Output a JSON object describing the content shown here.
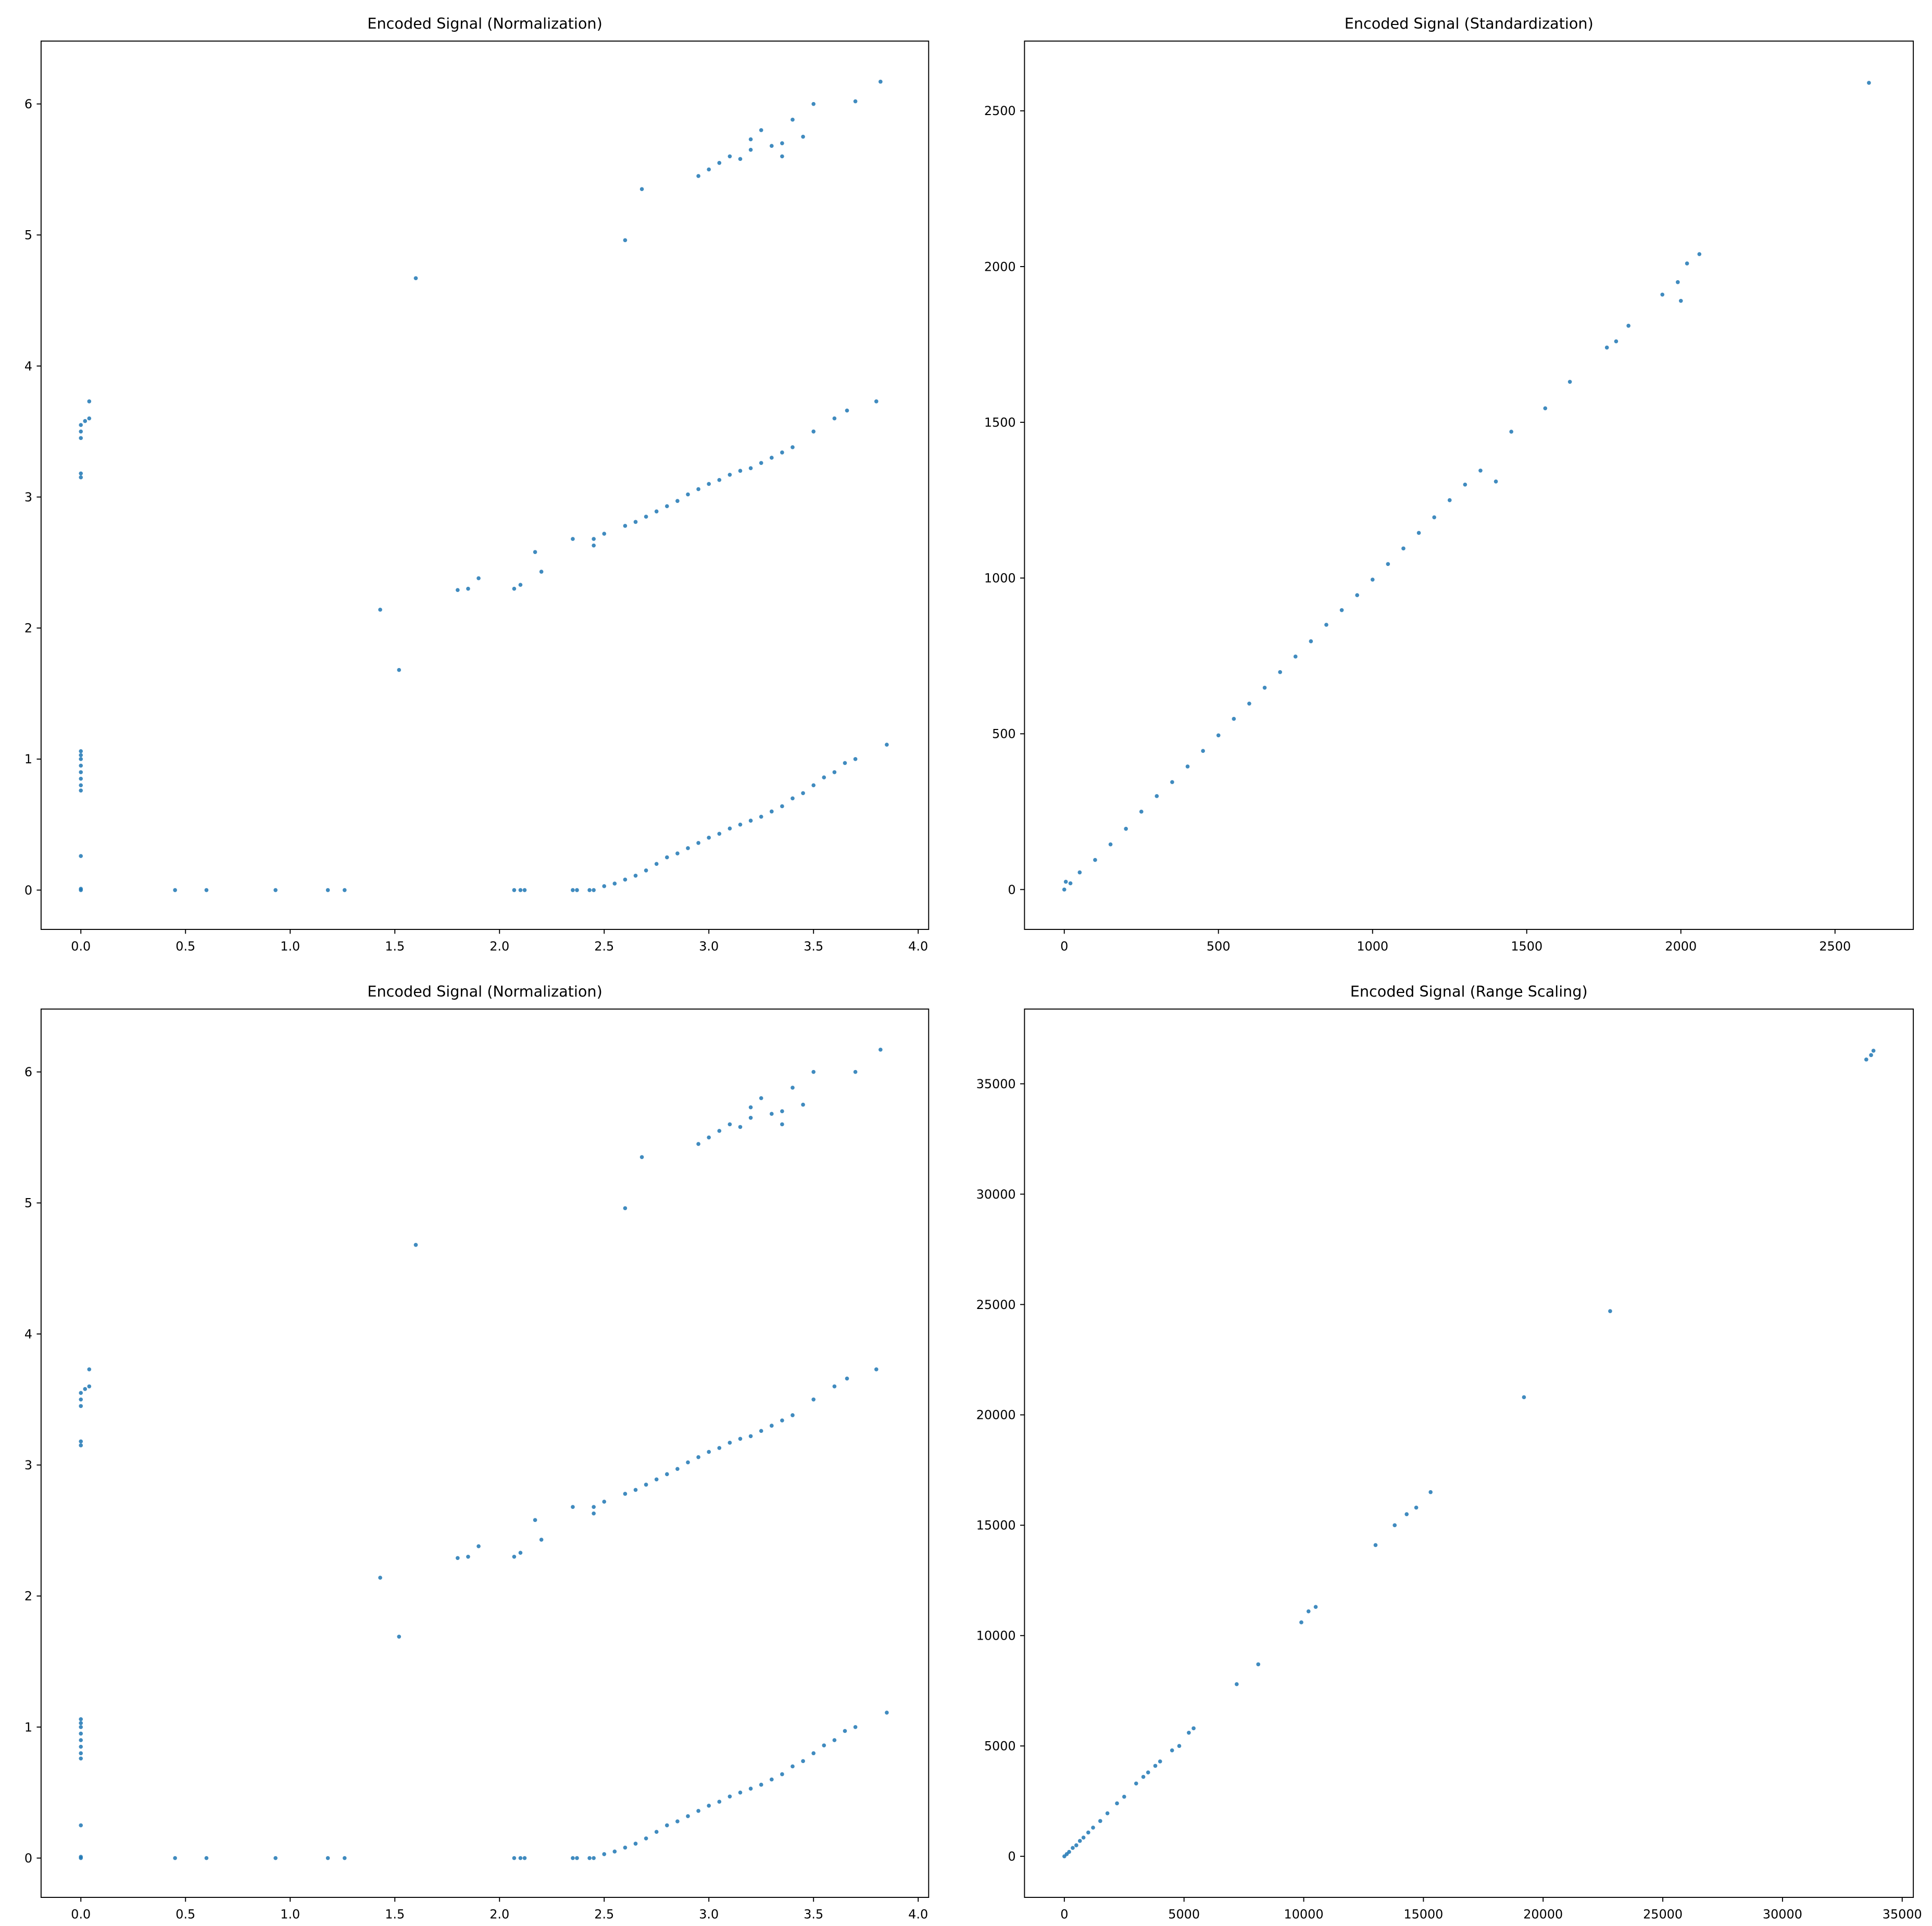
{
  "chart_data": [
    {
      "type": "scatter",
      "title": "Encoded Signal (Normalization)",
      "color": "#1f77b4",
      "x": [
        0,
        0,
        0,
        0,
        0,
        0,
        0,
        0,
        0,
        0,
        0,
        0,
        0,
        0,
        0,
        0,
        0.02,
        0.04,
        0.04,
        0.45,
        0.6,
        0.93,
        1.18,
        1.26,
        2.07,
        2.1,
        2.12,
        2.35,
        2.37,
        2.43,
        2.45,
        2.5,
        2.55,
        2.6,
        2.65,
        2.7,
        2.75,
        2.8,
        2.85,
        2.9,
        2.95,
        3.0,
        3.05,
        3.1,
        3.15,
        3.2,
        3.25,
        3.3,
        3.35,
        3.4,
        3.45,
        3.5,
        3.55,
        3.6,
        3.65,
        3.7,
        3.85,
        1.43,
        1.52,
        1.8,
        1.85,
        1.9,
        2.07,
        2.1,
        2.17,
        2.2,
        2.35,
        2.45,
        2.45,
        2.5,
        2.6,
        2.65,
        2.7,
        2.75,
        2.8,
        2.85,
        2.9,
        2.95,
        3.0,
        3.05,
        3.1,
        3.15,
        3.2,
        3.25,
        3.3,
        3.35,
        3.4,
        3.5,
        3.6,
        3.66,
        3.8,
        1.6,
        2.6,
        2.68,
        2.95,
        3.0,
        3.05,
        3.1,
        3.15,
        3.2,
        3.2,
        3.25,
        3.3,
        3.35,
        3.35,
        3.4,
        3.45,
        3.5,
        3.7,
        3.82
      ],
      "values": [
        0,
        0.01,
        0.26,
        0.76,
        0.8,
        0.85,
        0.9,
        0.95,
        1.0,
        1.03,
        1.06,
        3.15,
        3.18,
        3.45,
        3.5,
        3.55,
        3.58,
        3.6,
        3.73,
        0,
        0,
        0,
        0,
        0,
        0,
        0,
        0,
        0,
        0,
        0,
        0,
        0.03,
        0.05,
        0.08,
        0.11,
        0.15,
        0.2,
        0.25,
        0.28,
        0.32,
        0.36,
        0.4,
        0.43,
        0.47,
        0.5,
        0.53,
        0.56,
        0.6,
        0.64,
        0.7,
        0.74,
        0.8,
        0.86,
        0.9,
        0.97,
        1.0,
        1.11,
        2.14,
        1.68,
        2.29,
        2.3,
        2.38,
        2.3,
        2.33,
        2.58,
        2.43,
        2.68,
        2.63,
        2.68,
        2.72,
        2.78,
        2.81,
        2.85,
        2.89,
        2.93,
        2.97,
        3.02,
        3.06,
        3.1,
        3.13,
        3.17,
        3.2,
        3.22,
        3.26,
        3.3,
        3.34,
        3.38,
        3.5,
        3.6,
        3.66,
        3.73,
        4.67,
        4.96,
        5.35,
        5.45,
        5.5,
        5.55,
        5.6,
        5.58,
        5.65,
        5.73,
        5.8,
        5.68,
        5.7,
        5.6,
        5.88,
        5.75,
        6.0,
        6.02,
        6.17
      ],
      "xlim": [
        -0.19,
        4.05
      ],
      "ylim": [
        -0.3,
        6.48
      ],
      "xticks": [
        {
          "value": 0,
          "label": "0.0"
        },
        0.5,
        {
          "value": 1,
          "label": "1.0"
        },
        1.5,
        {
          "value": 2,
          "label": "2.0"
        },
        2.5,
        {
          "value": 3,
          "label": "3.0"
        },
        3.5,
        {
          "value": 4,
          "label": "4.0"
        }
      ],
      "yticks": [
        0,
        1,
        2,
        3,
        4,
        5,
        6
      ]
    },
    {
      "type": "scatter",
      "title": "Encoded Signal (Standardization)",
      "color": "#1f77b4",
      "x": [
        0,
        5,
        20,
        50,
        100,
        150,
        200,
        250,
        300,
        350,
        400,
        450,
        500,
        550,
        600,
        650,
        700,
        750,
        800,
        850,
        900,
        950,
        1000,
        1050,
        1100,
        1150,
        1200,
        1250,
        1300,
        1350,
        1400,
        1450,
        1560,
        1640,
        1760,
        1790,
        1830,
        1940,
        1990,
        2000,
        2020,
        2060,
        2610
      ],
      "values": [
        0,
        25,
        20,
        55,
        95,
        145,
        195,
        250,
        300,
        345,
        395,
        445,
        495,
        548,
        597,
        648,
        698,
        748,
        797,
        850,
        897,
        945,
        995,
        1045,
        1095,
        1145,
        1195,
        1250,
        1300,
        1345,
        1310,
        1470,
        1545,
        1630,
        1740,
        1760,
        1810,
        1910,
        1950,
        1890,
        2010,
        2040,
        2590
      ],
      "xlim": [
        -129,
        2754
      ],
      "ylim": [
        -128,
        2724
      ],
      "xticks": [
        0,
        500,
        1000,
        1500,
        2000,
        2500
      ],
      "yticks": [
        0,
        500,
        1000,
        1500,
        2000,
        2500
      ]
    },
    {
      "type": "scatter",
      "title": "Encoded Signal (Normalization)",
      "color": "#1f77b4",
      "x": [
        0,
        0,
        0,
        0,
        0,
        0,
        0,
        0,
        0,
        0,
        0,
        0,
        0,
        0,
        0,
        0,
        0.02,
        0.04,
        0.04,
        0.45,
        0.6,
        0.93,
        1.18,
        1.26,
        2.07,
        2.1,
        2.12,
        2.35,
        2.37,
        2.43,
        2.45,
        2.5,
        2.55,
        2.6,
        2.65,
        2.7,
        2.75,
        2.8,
        2.85,
        2.9,
        2.95,
        3.0,
        3.05,
        3.1,
        3.15,
        3.2,
        3.25,
        3.3,
        3.35,
        3.4,
        3.45,
        3.5,
        3.55,
        3.6,
        3.65,
        3.7,
        3.85,
        1.43,
        1.52,
        1.8,
        1.85,
        1.9,
        2.07,
        2.1,
        2.17,
        2.2,
        2.35,
        2.45,
        2.45,
        2.5,
        2.6,
        2.65,
        2.7,
        2.75,
        2.8,
        2.85,
        2.9,
        2.95,
        3.0,
        3.05,
        3.1,
        3.15,
        3.2,
        3.25,
        3.3,
        3.35,
        3.4,
        3.5,
        3.6,
        3.66,
        3.8,
        1.6,
        2.6,
        2.68,
        2.95,
        3.0,
        3.05,
        3.1,
        3.15,
        3.2,
        3.2,
        3.25,
        3.3,
        3.35,
        3.35,
        3.4,
        3.45,
        3.5,
        3.7,
        3.82
      ],
      "values": [
        0,
        0.01,
        0.25,
        0.76,
        0.8,
        0.85,
        0.9,
        0.95,
        1.0,
        1.03,
        1.06,
        3.15,
        3.18,
        3.45,
        3.5,
        3.55,
        3.58,
        3.6,
        3.73,
        0,
        0,
        0,
        0,
        0,
        0,
        0,
        0,
        0,
        0,
        0,
        0,
        0.03,
        0.05,
        0.08,
        0.11,
        0.15,
        0.2,
        0.25,
        0.28,
        0.32,
        0.36,
        0.4,
        0.43,
        0.47,
        0.5,
        0.53,
        0.56,
        0.6,
        0.64,
        0.7,
        0.74,
        0.8,
        0.86,
        0.9,
        0.97,
        1.0,
        1.11,
        2.14,
        1.69,
        2.29,
        2.3,
        2.38,
        2.3,
        2.33,
        2.58,
        2.43,
        2.68,
        2.63,
        2.68,
        2.72,
        2.78,
        2.81,
        2.85,
        2.89,
        2.93,
        2.97,
        3.02,
        3.06,
        3.1,
        3.13,
        3.17,
        3.2,
        3.22,
        3.26,
        3.3,
        3.34,
        3.38,
        3.5,
        3.6,
        3.66,
        3.73,
        4.68,
        4.96,
        5.35,
        5.45,
        5.5,
        5.55,
        5.6,
        5.58,
        5.65,
        5.73,
        5.8,
        5.68,
        5.7,
        5.6,
        5.88,
        5.75,
        6.0,
        6.0,
        6.17
      ],
      "xlim": [
        -0.19,
        4.05
      ],
      "ylim": [
        -0.3,
        6.48
      ],
      "xticks": [
        {
          "value": 0,
          "label": "0.0"
        },
        0.5,
        {
          "value": 1,
          "label": "1.0"
        },
        1.5,
        {
          "value": 2,
          "label": "2.0"
        },
        2.5,
        {
          "value": 3,
          "label": "3.0"
        },
        3.5,
        {
          "value": 4,
          "label": "4.0"
        }
      ],
      "yticks": [
        0,
        1,
        2,
        3,
        4,
        5,
        6
      ]
    },
    {
      "type": "scatter",
      "title": "Encoded Signal (Range Scaling)",
      "color": "#1f77b4",
      "x": [
        0,
        100,
        200,
        350,
        500,
        650,
        800,
        1000,
        1200,
        1500,
        1800,
        2200,
        2500,
        3000,
        3300,
        3500,
        3800,
        4000,
        4500,
        4800,
        5200,
        5400,
        7200,
        8100,
        9900,
        10200,
        10500,
        13000,
        13800,
        14300,
        14700,
        15300,
        19200,
        22800,
        33500,
        33700,
        33800
      ],
      "values": [
        0,
        100,
        200,
        380,
        500,
        700,
        850,
        1080,
        1300,
        1600,
        1950,
        2400,
        2700,
        3300,
        3600,
        3800,
        4100,
        4300,
        4800,
        5000,
        5600,
        5800,
        7800,
        8700,
        10600,
        11100,
        11300,
        14100,
        15000,
        15500,
        15800,
        16500,
        20800,
        24700,
        36100,
        36300,
        36500
      ],
      "xlim": [
        -1664,
        35465
      ],
      "ylim": [
        -1860,
        38387
      ],
      "xticks": [
        0,
        5000,
        10000,
        15000,
        20000,
        25000,
        30000,
        35000
      ],
      "yticks": [
        0,
        5000,
        10000,
        15000,
        20000,
        25000,
        30000,
        35000
      ]
    }
  ]
}
